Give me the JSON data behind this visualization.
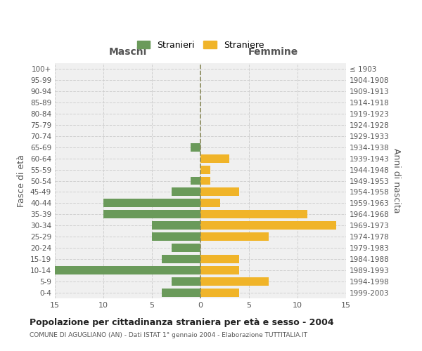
{
  "age_groups": [
    "100+",
    "95-99",
    "90-94",
    "85-89",
    "80-84",
    "75-79",
    "70-74",
    "65-69",
    "60-64",
    "55-59",
    "50-54",
    "45-49",
    "40-44",
    "35-39",
    "30-34",
    "25-29",
    "20-24",
    "15-19",
    "10-14",
    "5-9",
    "0-4"
  ],
  "birth_years": [
    "≤ 1903",
    "1904-1908",
    "1909-1913",
    "1914-1918",
    "1919-1923",
    "1924-1928",
    "1929-1933",
    "1934-1938",
    "1939-1943",
    "1944-1948",
    "1949-1953",
    "1954-1958",
    "1959-1963",
    "1964-1968",
    "1969-1973",
    "1974-1978",
    "1979-1983",
    "1984-1988",
    "1989-1993",
    "1994-1998",
    "1999-2003"
  ],
  "maschi": [
    0,
    0,
    0,
    0,
    0,
    0,
    0,
    1,
    0,
    0,
    1,
    3,
    10,
    10,
    5,
    5,
    3,
    4,
    15,
    3,
    4
  ],
  "femmine": [
    0,
    0,
    0,
    0,
    0,
    0,
    0,
    0,
    3,
    1,
    1,
    4,
    2,
    11,
    14,
    7,
    0,
    4,
    4,
    7,
    4
  ],
  "male_color": "#6a9a5a",
  "female_color": "#f0b429",
  "center_line_color": "#8a8a5a",
  "grid_color": "#cccccc",
  "bg_color": "#f0f0f0",
  "title": "Popolazione per cittadinanza straniera per età e sesso - 2004",
  "subtitle": "COMUNE DI AGUGLIANO (AN) - Dati ISTAT 1° gennaio 2004 - Elaborazione TUTTITALIA.IT",
  "xlabel_left": "Maschi",
  "xlabel_right": "Femmine",
  "ylabel_left": "Fasce di età",
  "ylabel_right": "Anni di nascita",
  "legend_male": "Stranieri",
  "legend_female": "Straniere",
  "xlim": 15
}
